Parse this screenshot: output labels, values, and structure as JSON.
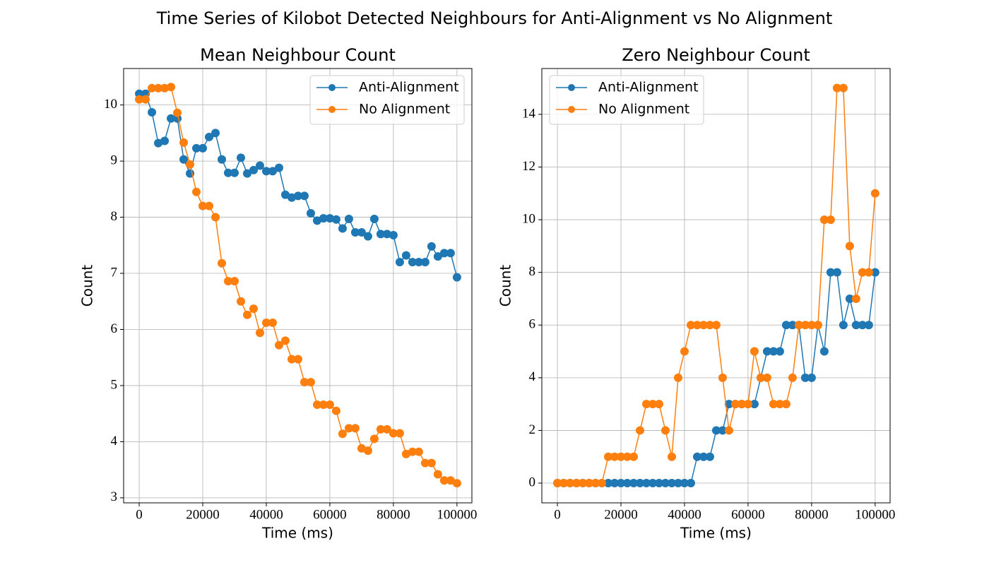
{
  "title": "Time Series of Kilobot Detected Neighbours for Anti-Alignment vs No Alignment",
  "chart_data": [
    {
      "type": "line",
      "title": "Mean Neighbour Count",
      "xlabel": "Time (ms)",
      "ylabel": "Count",
      "x": [
        0,
        2000,
        4000,
        6000,
        8000,
        10000,
        12000,
        14000,
        16000,
        18000,
        20000,
        22000,
        24000,
        26000,
        28000,
        30000,
        32000,
        34000,
        36000,
        38000,
        40000,
        42000,
        44000,
        46000,
        48000,
        50000,
        52000,
        54000,
        56000,
        58000,
        60000,
        62000,
        64000,
        66000,
        68000,
        70000,
        72000,
        74000,
        76000,
        78000,
        80000,
        82000,
        84000,
        86000,
        88000,
        90000,
        92000,
        94000,
        96000,
        98000,
        100000
      ],
      "series": [
        {
          "name": "Anti-Alignment",
          "color": "#1f77b4",
          "values": [
            10.2,
            10.2,
            9.87,
            9.32,
            9.36,
            9.76,
            9.76,
            9.03,
            8.78,
            9.23,
            9.23,
            9.43,
            9.5,
            9.03,
            8.79,
            8.79,
            9.06,
            8.78,
            8.84,
            8.92,
            8.82,
            8.82,
            8.88,
            8.4,
            8.35,
            8.38,
            8.38,
            8.07,
            7.94,
            7.98,
            7.98,
            7.96,
            7.8,
            7.97,
            7.73,
            7.73,
            7.66,
            7.97,
            7.7,
            7.7,
            7.68,
            7.2,
            7.32,
            7.2,
            7.2,
            7.2,
            7.48,
            7.3,
            7.36,
            7.36,
            6.93
          ]
        },
        {
          "name": "No Alignment",
          "color": "#ff7f0e",
          "values": [
            10.1,
            10.1,
            10.3,
            10.3,
            10.3,
            10.32,
            9.86,
            9.33,
            8.94,
            8.45,
            8.2,
            8.2,
            8.0,
            7.18,
            6.86,
            6.86,
            6.5,
            6.26,
            6.37,
            5.94,
            6.12,
            6.12,
            5.72,
            5.8,
            5.47,
            5.47,
            5.06,
            5.06,
            4.66,
            4.66,
            4.66,
            4.55,
            4.14,
            4.24,
            4.24,
            3.88,
            3.84,
            4.05,
            4.22,
            4.22,
            4.15,
            4.15,
            3.78,
            3.82,
            3.82,
            3.62,
            3.62,
            3.42,
            3.31,
            3.31,
            3.26
          ]
        }
      ],
      "xlim": [
        -4900,
        104700
      ],
      "ylim": [
        2.91,
        10.65
      ],
      "xticks": [
        0,
        20000,
        40000,
        60000,
        80000,
        100000
      ],
      "yticks": [
        3,
        4,
        5,
        6,
        7,
        8,
        9,
        10
      ],
      "grid": true,
      "legend": "upper right"
    },
    {
      "type": "line",
      "title": "Zero Neighbour Count",
      "xlabel": "Time (ms)",
      "ylabel": "Count",
      "x": [
        0,
        2000,
        4000,
        6000,
        8000,
        10000,
        12000,
        14000,
        16000,
        18000,
        20000,
        22000,
        24000,
        26000,
        28000,
        30000,
        32000,
        34000,
        36000,
        38000,
        40000,
        42000,
        44000,
        46000,
        48000,
        50000,
        52000,
        54000,
        56000,
        58000,
        60000,
        62000,
        64000,
        66000,
        68000,
        70000,
        72000,
        74000,
        76000,
        78000,
        80000,
        82000,
        84000,
        86000,
        88000,
        90000,
        92000,
        94000,
        96000,
        98000,
        100000
      ],
      "series": [
        {
          "name": "Anti-Alignment",
          "color": "#1f77b4",
          "values": [
            0,
            0,
            0,
            0,
            0,
            0,
            0,
            0,
            0,
            0,
            0,
            0,
            0,
            0,
            0,
            0,
            0,
            0,
            0,
            0,
            0,
            0,
            1,
            1,
            1,
            2,
            2,
            3,
            3,
            3,
            3,
            3,
            4,
            5,
            5,
            5,
            6,
            6,
            6,
            4,
            4,
            6,
            5,
            8,
            8,
            6,
            7,
            6,
            6,
            6,
            8
          ]
        },
        {
          "name": "No Alignment",
          "color": "#ff7f0e",
          "values": [
            0,
            0,
            0,
            0,
            0,
            0,
            0,
            0,
            1,
            1,
            1,
            1,
            1,
            2,
            3,
            3,
            3,
            2,
            1,
            4,
            5,
            6,
            6,
            6,
            6,
            6,
            4,
            2,
            3,
            3,
            3,
            5,
            4,
            4,
            3,
            3,
            3,
            4,
            6,
            6,
            6,
            6,
            10,
            10,
            15,
            15,
            9,
            7,
            8,
            8,
            11
          ]
        }
      ],
      "xlim": [
        -4900,
        104700
      ],
      "ylim": [
        -0.75,
        15.74
      ],
      "xticks": [
        0,
        20000,
        40000,
        60000,
        80000,
        100000
      ],
      "yticks": [
        0,
        2,
        4,
        6,
        8,
        10,
        12,
        14
      ],
      "grid": true,
      "legend": "upper left"
    }
  ]
}
